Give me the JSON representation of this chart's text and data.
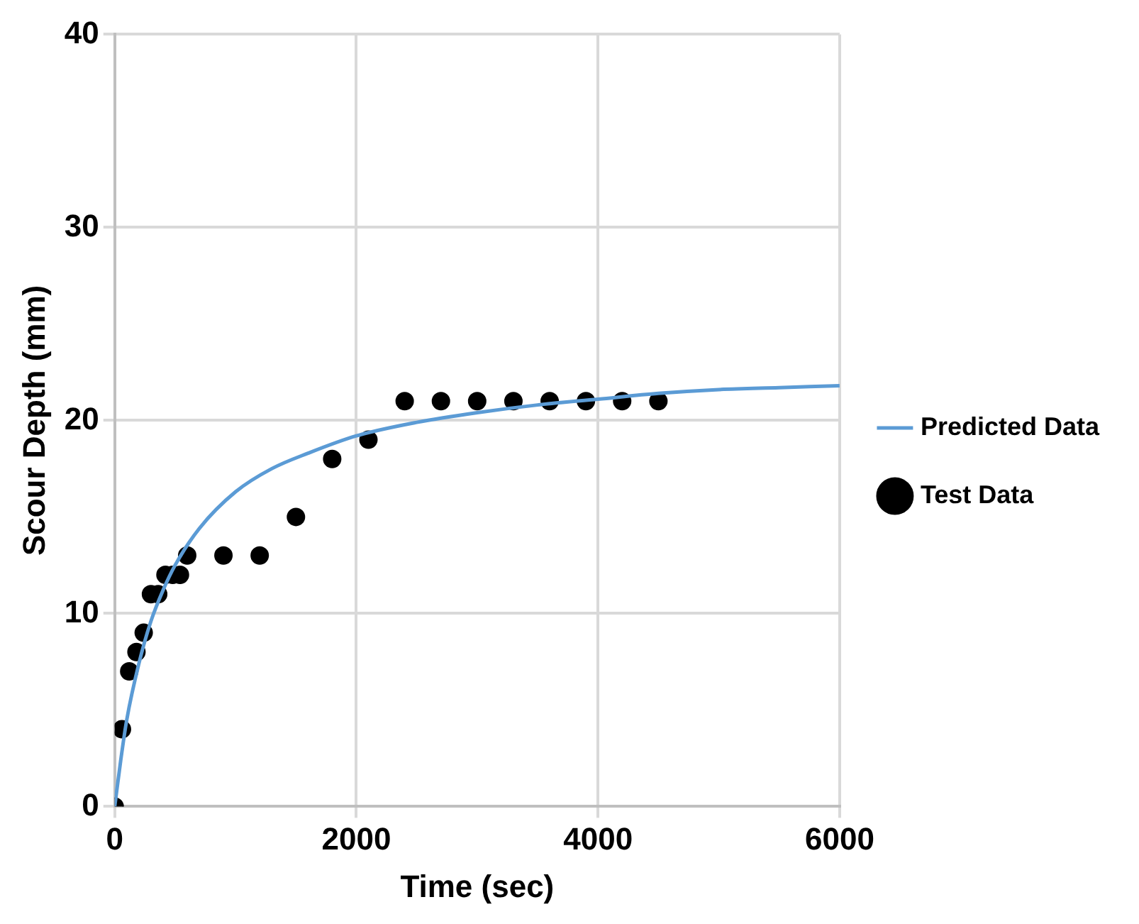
{
  "chart_data": {
    "type": "scatter",
    "xlabel": "Time (sec)",
    "ylabel": "Scour Depth (mm)",
    "xlim": [
      0,
      6000
    ],
    "xticks": [
      0,
      2000,
      4000,
      6000
    ],
    "ylim": [
      0,
      40
    ],
    "yticks": [
      0,
      10,
      20,
      30,
      40
    ],
    "grid": true,
    "legend": "right",
    "series": [
      {
        "name": "Test Data",
        "marker": "circle",
        "color": "#000000",
        "x": [
          0,
          60,
          120,
          180,
          240,
          300,
          360,
          420,
          480,
          540,
          600,
          900,
          1200,
          1500,
          1800,
          2100,
          2400,
          2700,
          3000,
          3300,
          3600,
          3900,
          4200,
          4500
        ],
        "values": [
          0,
          4,
          7,
          8,
          9,
          11,
          11,
          12,
          12,
          12,
          13,
          13,
          13,
          15,
          18,
          19,
          21,
          21,
          21,
          21,
          21,
          21,
          21,
          21
        ]
      },
      {
        "name": "Predicted Data",
        "type": "line",
        "color": "#5b9bd5",
        "x": [
          0,
          50,
          100,
          200,
          300,
          400,
          500,
          700,
          1000,
          1300,
          1600,
          2000,
          2500,
          3000,
          3500,
          4000,
          4500,
          5000,
          5500,
          6000
        ],
        "values": [
          0,
          2.4,
          4.5,
          7.4,
          9.6,
          11.2,
          12.5,
          14.4,
          16.3,
          17.5,
          18.3,
          19.2,
          19.9,
          20.4,
          20.8,
          21.1,
          21.4,
          21.6,
          21.7,
          21.8
        ]
      }
    ]
  }
}
